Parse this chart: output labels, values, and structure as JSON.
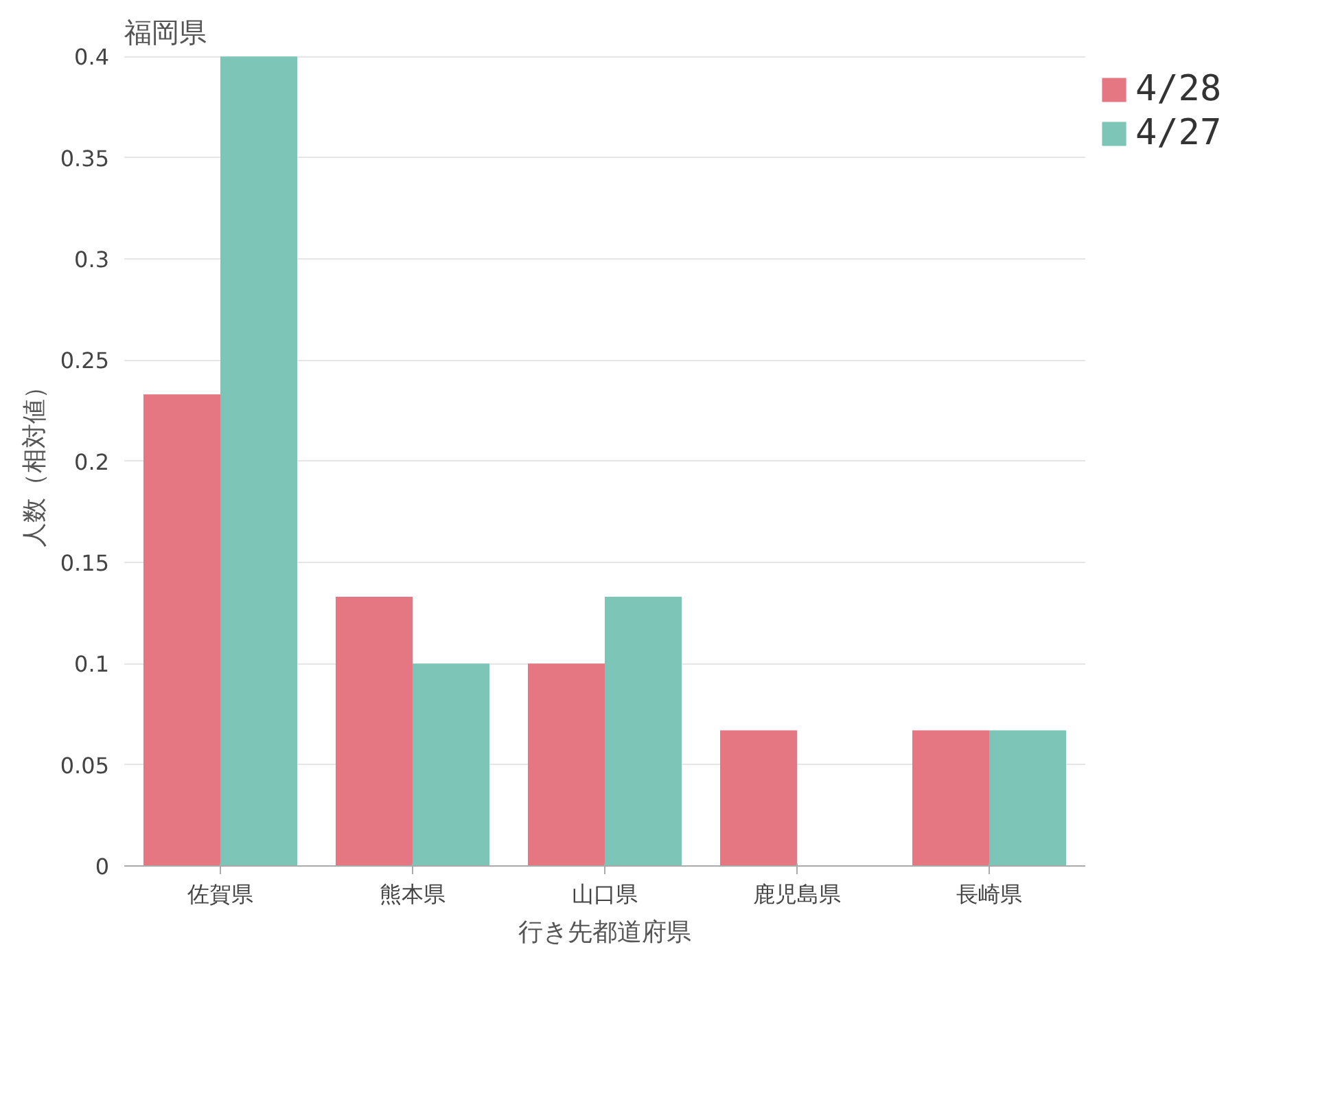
{
  "chart_data": {
    "type": "bar",
    "title": "福岡県",
    "xlabel": "行き先都道府県",
    "ylabel": "人数（相対値）",
    "categories": [
      "佐賀県",
      "熊本県",
      "山口県",
      "鹿児島県",
      "長崎県"
    ],
    "series": [
      {
        "name": "4/28",
        "color": "#e57782",
        "values": [
          0.233,
          0.133,
          0.1,
          0.067,
          0.067
        ]
      },
      {
        "name": "4/27",
        "color": "#7dc5b7",
        "values": [
          0.4,
          0.1,
          0.133,
          0,
          0.067
        ]
      }
    ],
    "ylim": [
      0,
      0.4
    ],
    "yticks": [
      0,
      0.05,
      0.1,
      0.15,
      0.2,
      0.25,
      0.3,
      0.35,
      0.4
    ],
    "grid": "y",
    "legend": "top right"
  }
}
